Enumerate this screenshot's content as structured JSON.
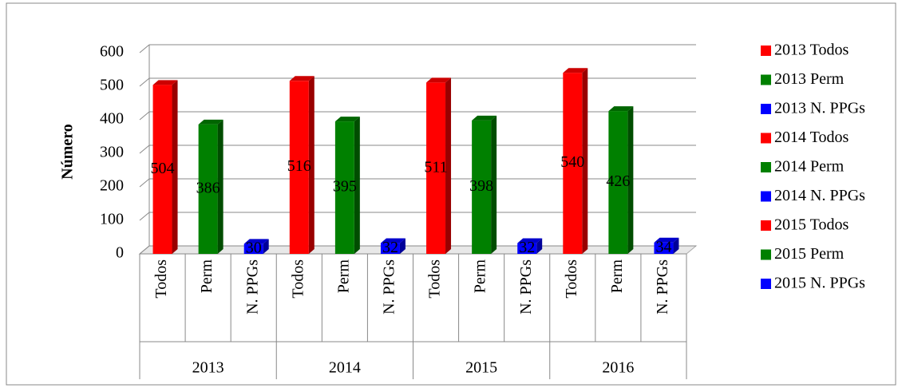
{
  "chart_data": {
    "type": "bar3d",
    "y_label": "Número",
    "categories": [
      "Todos",
      "Perm",
      "N. PPGs",
      "Todos",
      "Perm",
      "N. PPGs",
      "Todos",
      "Perm",
      "N. PPGs",
      "Todos",
      "Perm",
      "N. PPGs"
    ],
    "groups": [
      "2013",
      "2014",
      "2015",
      "2016"
    ],
    "values": [
      504,
      386,
      30,
      516,
      395,
      32,
      511,
      398,
      32,
      540,
      426,
      34
    ],
    "colors": [
      "#ff0000",
      "#008000",
      "#0000ff",
      "#ff0000",
      "#008000",
      "#0000ff",
      "#ff0000",
      "#008000",
      "#0000ff",
      "#ff0000",
      "#008000",
      "#0000ff"
    ],
    "ylim": [
      0,
      600
    ],
    "yticks": [
      0,
      100,
      200,
      300,
      400,
      500,
      600
    ],
    "grid": true,
    "legend": [
      {
        "name": "2013 Todos",
        "color": "#ff0000"
      },
      {
        "name": "2013 Perm",
        "color": "#008000"
      },
      {
        "name": "2013 N. PPGs",
        "color": "#0000ff"
      },
      {
        "name": "2014 Todos",
        "color": "#ff0000"
      },
      {
        "name": "2014 Perm",
        "color": "#008000"
      },
      {
        "name": "2014 N. PPGs",
        "color": "#0000ff"
      },
      {
        "name": "2015 Todos",
        "color": "#ff0000"
      },
      {
        "name": "2015 Perm",
        "color": "#008000"
      },
      {
        "name": "2015 N. PPGs",
        "color": "#0000ff"
      }
    ]
  }
}
